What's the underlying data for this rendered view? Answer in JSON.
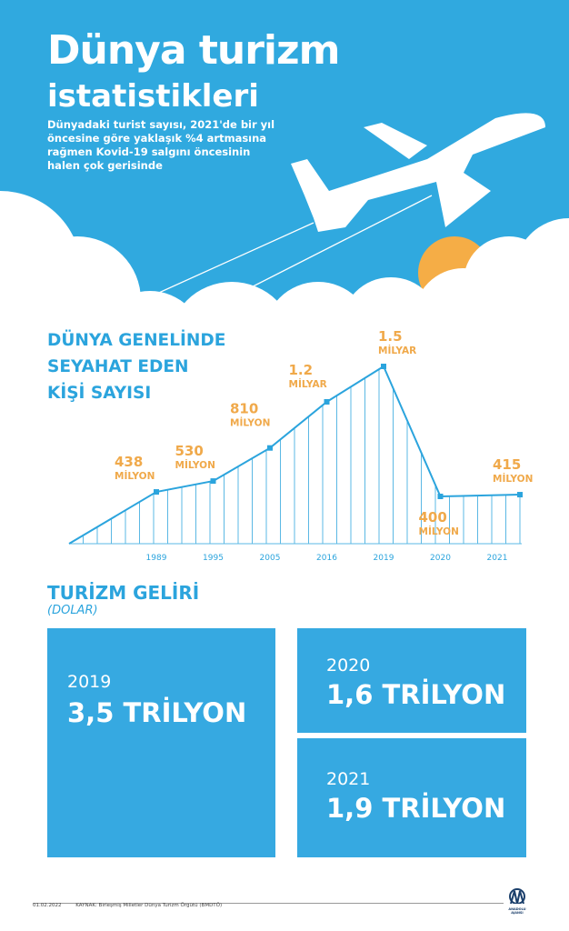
{
  "header": {
    "title_line1": "Dünya turizm",
    "title_line2": "istatistikleri",
    "subtitle": "Dünyadaki turist sayısı, 2021'de bir yıl öncesine göre yaklaşık %4 artmasına rağmen Kovid-19 salgını öncesinin halen çok gerisinde"
  },
  "colors": {
    "sky": "#30a9df",
    "sun": "#f5ad46",
    "accent_blue": "#2ba4dd",
    "label_orange": "#f0a94a"
  },
  "chart_data": {
    "type": "line",
    "title": "DÜNYA GENELİNDE SEYAHAT EDEN KİŞİ SAYISI",
    "categories": [
      "1989",
      "1995",
      "2005",
      "2016",
      "2019",
      "2020",
      "2021"
    ],
    "values_million": [
      438,
      530,
      810,
      1200,
      1500,
      400,
      415
    ],
    "data_labels": [
      [
        "438",
        "MİLYON"
      ],
      [
        "530",
        "MİLYON"
      ],
      [
        "810",
        "MİLYON"
      ],
      [
        "1.2",
        "MİLYAR"
      ],
      [
        "1.5",
        "MİLYAR"
      ],
      [
        "400",
        "MİLYON"
      ],
      [
        "415",
        "MİLYON"
      ]
    ],
    "grid": "vertical lines"
  },
  "revenue": {
    "title": "TURİZM GELİRİ",
    "unit": "(DOLAR)",
    "items": [
      {
        "year": "2019",
        "value": "3,5 TRİLYON"
      },
      {
        "year": "2020",
        "value": "1,6 TRİLYON"
      },
      {
        "year": "2021",
        "value": "1,9 TRİLYON"
      }
    ]
  },
  "footer": {
    "date": "01.02.2022",
    "source": "KAYNAK: Birleşmiş Milletler Dünya Turizm Örgütü (BMDTÖ)",
    "logo_text": "ANADOLU AJANSI"
  }
}
